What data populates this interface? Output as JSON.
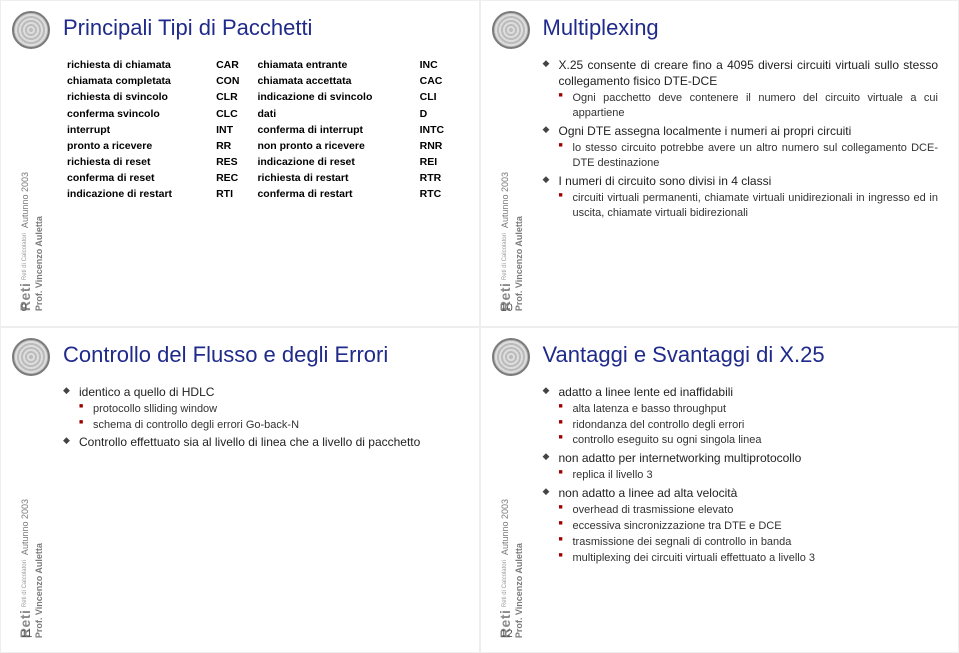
{
  "meta": {
    "brand": "Reti",
    "brand_sub": "Reti di Calcolatori",
    "term": "Autunno 2003",
    "prof": "Prof. Vincenzo Auletta",
    "title_color": "#1f2a8a",
    "body_color": "#222222",
    "sub_bullet_color": "#9e0000"
  },
  "slide9": {
    "num": "9",
    "title": "Principali Tipi di Pacchetti",
    "rows": [
      [
        "richiesta di chiamata",
        "CAR",
        "chiamata entrante",
        "INC"
      ],
      [
        "chiamata completata",
        "CON",
        "chiamata accettata",
        "CAC"
      ],
      [
        "richiesta di svincolo",
        "CLR",
        "indicazione di svincolo",
        "CLI"
      ],
      [
        "conferma svincolo",
        "CLC",
        "dati",
        "D"
      ],
      [
        "interrupt",
        "INT",
        "conferma di interrupt",
        "INTC"
      ],
      [
        "pronto a ricevere",
        "RR",
        "non pronto a ricevere",
        "RNR"
      ],
      [
        "richiesta di reset",
        "RES",
        "indicazione di reset",
        "REI"
      ],
      [
        "conferma di reset",
        "REC",
        "richiesta di restart",
        "RTR"
      ],
      [
        "indicazione di restart",
        "RTI",
        "conferma di restart",
        "RTC"
      ]
    ]
  },
  "slide10": {
    "num": "10",
    "title": "Multiplexing",
    "b1": "X.25 consente di creare fino a 4095 diversi circuiti virtuali sullo stesso collegamento fisico DTE-DCE",
    "b1a": "Ogni pacchetto deve contenere il numero del circuito virtuale a cui appartiene",
    "b2": "Ogni DTE assegna localmente i numeri ai propri circuiti",
    "b2a": "lo stesso circuito potrebbe avere un altro numero sul collegamento DCE-DTE destinazione",
    "b3": "I numeri di circuito sono divisi in 4 classi",
    "b3a": "circuiti virtuali permanenti, chiamate virtuali unidirezionali in ingresso ed in uscita, chiamate virtuali bidirezionali"
  },
  "slide11": {
    "num": "11",
    "title": "Controllo del Flusso e degli Errori",
    "b1": "identico a quello di HDLC",
    "b1a": "protocollo slliding window",
    "b1b": "schema di controllo degli errori Go-back-N",
    "b2": "Controllo effettuato sia al livello di linea che a livello di pacchetto"
  },
  "slide12": {
    "num": "12",
    "title": "Vantaggi e Svantaggi di X.25",
    "b1": "adatto a linee lente ed inaffidabili",
    "b1a": "alta latenza e basso throughput",
    "b1b": "ridondanza del controllo degli errori",
    "b1c": "controllo eseguito su ogni singola linea",
    "b2": "non adatto per internetworking multiprotocollo",
    "b2a": "replica il livello 3",
    "b3": "non adatto a linee ad alta velocità",
    "b3a": "overhead di trasmissione elevato",
    "b3b": "eccessiva sincronizzazione tra DTE e DCE",
    "b3c": "trasmissione dei segnali di controllo in banda",
    "b3d": "multiplexing dei circuiti virtuali effettuato a livello 3"
  }
}
